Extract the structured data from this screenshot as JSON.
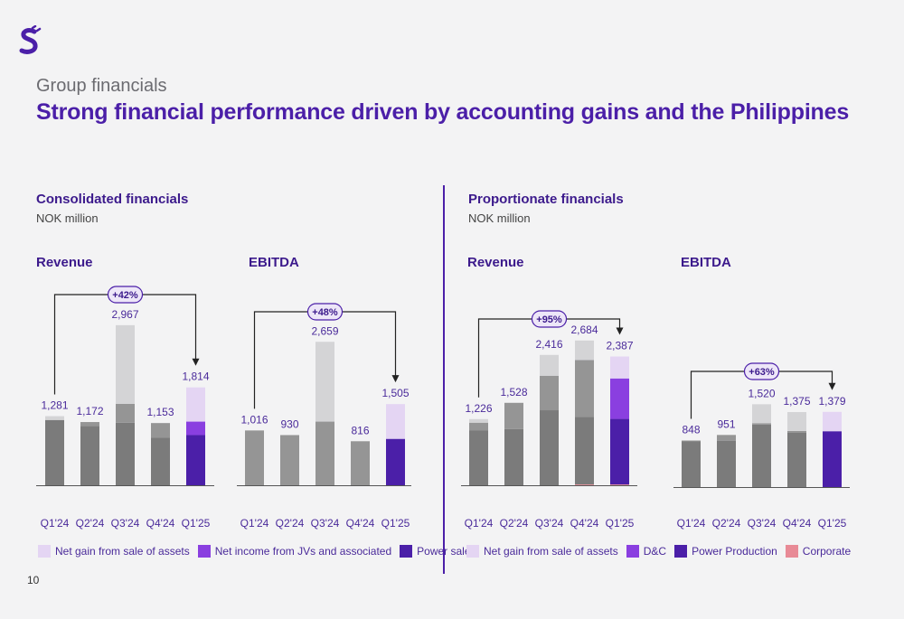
{
  "header": {
    "section": "Group financials",
    "title": "Strong financial performance driven by accounting gains and the Philippines",
    "page_number": "10"
  },
  "colors": {
    "power": "#4b1fa8",
    "jv": "#8a3fe0",
    "gain": "#e4d5f3",
    "grey1": "#7b7b7b",
    "grey2": "#959595",
    "grey3": "#d4d4d6",
    "corporate": "#e88a96",
    "badge_fill": "#ede6f8"
  },
  "left": {
    "title": "Consolidated financials",
    "unit": "NOK million",
    "legend": [
      {
        "label": "Net gain from sale of assets",
        "color": "#e4d5f3"
      },
      {
        "label": "Net income from JVs and associated",
        "color": "#8a3fe0"
      },
      {
        "label": "Power sales",
        "color": "#4b1fa8"
      }
    ]
  },
  "right": {
    "title": "Proportionate financials",
    "unit": "NOK million",
    "legend": [
      {
        "label": "Net gain from sale of assets",
        "color": "#e4d5f3"
      },
      {
        "label": "D&C",
        "color": "#8a3fe0"
      },
      {
        "label": "Power Production",
        "color": "#4b1fa8"
      },
      {
        "label": "Corporate",
        "color": "#e88a96"
      }
    ]
  },
  "chart_data": [
    {
      "type": "bar",
      "title": "Revenue",
      "group": "Consolidated financials",
      "categories": [
        "Q1'24",
        "Q2'24",
        "Q3'24",
        "Q4'24",
        "Q1'25"
      ],
      "totals": [
        "1,281",
        "1,172",
        "2,967",
        "1,153",
        "1,814"
      ],
      "growth": "+42%",
      "segments": [
        [
          {
            "v": 1210,
            "c": "grey1"
          },
          {
            "v": 71,
            "c": "grey3"
          }
        ],
        [
          {
            "v": 1100,
            "c": "grey1"
          },
          {
            "v": 72,
            "c": "grey2"
          }
        ],
        [
          {
            "v": 1160,
            "c": "grey1"
          },
          {
            "v": 350,
            "c": "grey2"
          },
          {
            "v": 1457,
            "c": "grey3"
          }
        ],
        [
          {
            "v": 880,
            "c": "grey1"
          },
          {
            "v": 273,
            "c": "grey2"
          }
        ],
        [
          {
            "v": 930,
            "c": "power"
          },
          {
            "v": 250,
            "c": "jv"
          },
          {
            "v": 634,
            "c": "gain"
          }
        ]
      ]
    },
    {
      "type": "bar",
      "title": "EBITDA",
      "group": "Consolidated financials",
      "categories": [
        "Q1'24",
        "Q2'24",
        "Q3'24",
        "Q4'24",
        "Q1'25"
      ],
      "totals": [
        "1,016",
        "930",
        "2,659",
        "816",
        "1,505"
      ],
      "growth": "+48%",
      "segments": [
        [
          {
            "v": 1016,
            "c": "grey2"
          }
        ],
        [
          {
            "v": 930,
            "c": "grey2"
          }
        ],
        [
          {
            "v": 1180,
            "c": "grey2"
          },
          {
            "v": 1479,
            "c": "grey3"
          }
        ],
        [
          {
            "v": 816,
            "c": "grey2"
          }
        ],
        [
          {
            "v": 860,
            "c": "power"
          },
          {
            "v": 645,
            "c": "gain"
          }
        ]
      ]
    },
    {
      "type": "bar",
      "title": "Revenue",
      "group": "Proportionate financials",
      "categories": [
        "Q1'24",
        "Q2'24",
        "Q3'24",
        "Q4'24",
        "Q1'25"
      ],
      "totals": [
        "1,226",
        "1,528",
        "2,416",
        "2,684",
        "2,387"
      ],
      "growth": "+95%",
      "segments": [
        [
          {
            "v": 1020,
            "c": "grey1"
          },
          {
            "v": 140,
            "c": "grey2"
          },
          {
            "v": 66,
            "c": "grey3"
          }
        ],
        [
          {
            "v": 1040,
            "c": "grey1"
          },
          {
            "v": 488,
            "c": "grey2"
          }
        ],
        [
          {
            "v": 1390,
            "c": "grey1"
          },
          {
            "v": 640,
            "c": "grey2"
          },
          {
            "v": 386,
            "c": "grey3"
          }
        ],
        [
          {
            "v": 15,
            "c": "corporate"
          },
          {
            "v": 1255,
            "c": "grey1"
          },
          {
            "v": 1050,
            "c": "grey2"
          },
          {
            "v": 364,
            "c": "grey3"
          }
        ],
        [
          {
            "v": 15,
            "c": "corporate"
          },
          {
            "v": 1215,
            "c": "power"
          },
          {
            "v": 750,
            "c": "jv"
          },
          {
            "v": 407,
            "c": "gain"
          }
        ]
      ]
    },
    {
      "type": "bar",
      "title": "EBITDA",
      "group": "Proportionate financials",
      "categories": [
        "Q1'24",
        "Q2'24",
        "Q3'24",
        "Q4'24",
        "Q1'25"
      ],
      "totals": [
        "848",
        "951",
        "1,520",
        "1,375",
        "1,379"
      ],
      "growth": "+63%",
      "segments": [
        [
          {
            "v": -15,
            "c": "corporate"
          },
          {
            "v": 850,
            "c": "grey1"
          },
          {
            "v": 13,
            "c": "grey2"
          }
        ],
        [
          {
            "v": -15,
            "c": "corporate"
          },
          {
            "v": 860,
            "c": "grey1"
          },
          {
            "v": 106,
            "c": "grey2"
          }
        ],
        [
          {
            "v": -15,
            "c": "corporate"
          },
          {
            "v": 1160,
            "c": "grey1"
          },
          {
            "v": 25,
            "c": "grey2"
          },
          {
            "v": 350,
            "c": "grey3"
          }
        ],
        [
          {
            "v": -15,
            "c": "corporate"
          },
          {
            "v": 1005,
            "c": "grey1"
          },
          {
            "v": 35,
            "c": "grey2"
          },
          {
            "v": 350,
            "c": "grey3"
          }
        ],
        [
          {
            "v": -15,
            "c": "corporate"
          },
          {
            "v": 1035,
            "c": "power"
          },
          {
            "v": 359,
            "c": "gain"
          }
        ]
      ]
    }
  ]
}
